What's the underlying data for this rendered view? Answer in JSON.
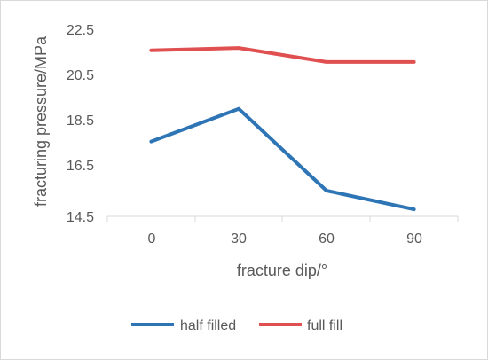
{
  "chart_data": {
    "type": "line",
    "categories": [
      "0",
      "30",
      "60",
      "90"
    ],
    "xlabel": "fracture dip/°",
    "ylabel": "fracturing pressure/MPa",
    "ylim": [
      14.5,
      22.5
    ],
    "yticks": [
      "14.5",
      "16.5",
      "18.5",
      "20.5",
      "22.5"
    ],
    "grid": false,
    "legend_position": "bottom",
    "series": [
      {
        "name": "half filled",
        "color": "#2e75b6",
        "values": [
          17.7,
          19.1,
          15.6,
          14.8
        ]
      },
      {
        "name": "full fill",
        "color": "#e05050",
        "values": [
          21.6,
          21.7,
          21.1,
          21.1
        ]
      }
    ]
  }
}
